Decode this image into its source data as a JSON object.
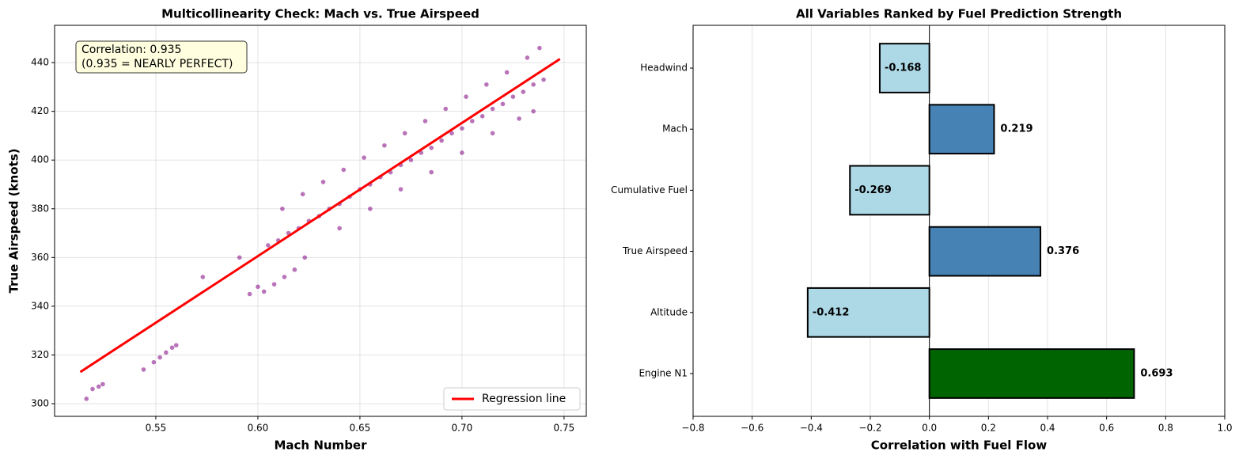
{
  "chart_data": [
    {
      "type": "scatter",
      "title": "Multicollinearity Check: Mach vs. True Airspeed",
      "xlabel": "Mach Number",
      "ylabel": "True Airspeed (knots)",
      "annotation": [
        "Correlation: 0.935",
        "(0.935 = NEARLY PERFECT)"
      ],
      "series": [
        {
          "color": "#800080",
          "x": [
            0.516,
            0.519,
            0.522,
            0.524,
            0.544,
            0.549,
            0.552,
            0.555,
            0.558,
            0.56,
            0.573,
            0.591,
            0.596,
            0.6,
            0.603,
            0.608,
            0.613,
            0.618,
            0.623,
            0.605,
            0.61,
            0.615,
            0.62,
            0.625,
            0.63,
            0.635,
            0.64,
            0.645,
            0.65,
            0.655,
            0.66,
            0.665,
            0.67,
            0.675,
            0.68,
            0.685,
            0.69,
            0.695,
            0.7,
            0.705,
            0.71,
            0.715,
            0.72,
            0.725,
            0.73,
            0.735,
            0.74,
            0.612,
            0.622,
            0.632,
            0.642,
            0.652,
            0.662,
            0.672,
            0.682,
            0.692,
            0.702,
            0.712,
            0.722,
            0.732,
            0.738,
            0.64,
            0.655,
            0.67,
            0.685,
            0.7,
            0.715,
            0.728,
            0.735
          ],
          "values": [
            302,
            306,
            307,
            308,
            314,
            317,
            319,
            321,
            323,
            324,
            352,
            360,
            345,
            348,
            346,
            349,
            352,
            355,
            360,
            365,
            367,
            370,
            372,
            375,
            377,
            380,
            382,
            385,
            388,
            390,
            393,
            395,
            398,
            400,
            403,
            405,
            408,
            411,
            413,
            416,
            418,
            421,
            423,
            426,
            428,
            431,
            433,
            380,
            386,
            391,
            396,
            401,
            406,
            411,
            416,
            421,
            426,
            431,
            436,
            442,
            446,
            372,
            380,
            388,
            395,
            403,
            411,
            417,
            420
          ]
        },
        {
          "type": "line",
          "name": "Regression line",
          "color": "#ff0000",
          "x": [
            0.513,
            0.748
          ],
          "values": [
            313,
            441.5
          ]
        }
      ],
      "xlim": [
        0.5004,
        0.7609
      ],
      "ylim": [
        294.8,
        455.3
      ],
      "xticks": [
        0.55,
        {
          "value": 0.6,
          "label": "0.60"
        },
        0.65,
        {
          "value": 0.7,
          "label": "0.70"
        },
        0.75
      ],
      "yticks": [
        300,
        320,
        340,
        360,
        380,
        400,
        420,
        440
      ],
      "grid": true,
      "legend": "lower right"
    },
    {
      "type": "barh",
      "title": "All Variables Ranked by Fuel Prediction Strength",
      "xlabel": "Correlation with Fuel Flow",
      "categories": [
        "Headwind",
        "Mach",
        "Cumulative Fuel",
        "True Airspeed",
        "Altitude",
        "Engine N1"
      ],
      "values": [
        -0.168,
        0.219,
        -0.269,
        0.376,
        -0.412,
        0.693
      ],
      "colors": [
        "#add8e6",
        "#4682b4",
        "#add8e6",
        "#4682b4",
        "#add8e6",
        "#006400"
      ],
      "xlim": [
        -0.8,
        1.0
      ],
      "xticks": [
        {
          "value": -0.8,
          "label": "−0.8"
        },
        {
          "value": -0.6,
          "label": "−0.6"
        },
        {
          "value": -0.4,
          "label": "−0.4"
        },
        {
          "value": -0.2,
          "label": "−0.2"
        },
        {
          "value": 0,
          "label": "0.0"
        },
        0.2,
        0.4,
        0.6,
        0.8,
        {
          "value": 1,
          "label": "1.0"
        }
      ],
      "grid": true
    }
  ]
}
